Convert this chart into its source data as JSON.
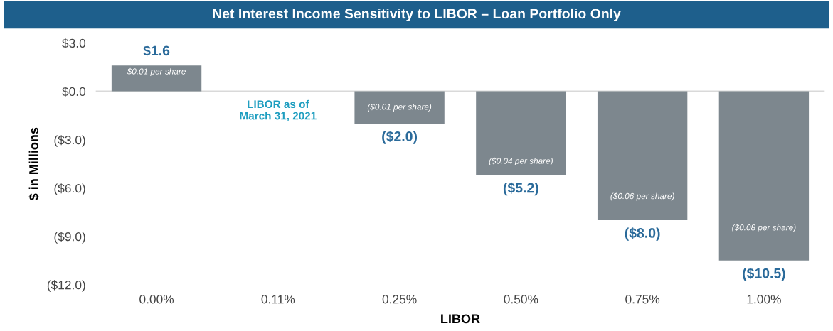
{
  "chart_data": {
    "type": "bar",
    "title": "Net Interest Income Sensitivity to LIBOR – Loan Portfolio Only",
    "xlabel": "LIBOR",
    "ylabel": "$ in Millions",
    "categories": [
      "0.00%",
      "0.11%",
      "0.25%",
      "0.50%",
      "0.75%",
      "1.00%"
    ],
    "values": [
      1.6,
      null,
      -2.0,
      -5.2,
      -8.0,
      -10.5
    ],
    "value_labels": [
      "$1.6",
      null,
      "($2.0)",
      "($5.2)",
      "($8.0)",
      "($10.5)"
    ],
    "color": "#7d878e",
    "ylim": [
      -12,
      3
    ],
    "yticks": [
      {
        "value": 3,
        "label": "$3.0"
      },
      {
        "value": 0,
        "label": "$0.0"
      },
      {
        "value": -3,
        "label": "($3.0)"
      },
      {
        "value": -6,
        "label": "($6.0)"
      },
      {
        "value": -9,
        "label": "($9.0)"
      },
      {
        "value": -12,
        "label": "($12.0)"
      }
    ],
    "ref_lines": [
      {
        "axis": "y",
        "value": 0,
        "color": "#d9d9d9"
      }
    ],
    "annotations": [
      "$0.01 per share",
      "LIBOR as of\nMarch 31, 2021",
      "($0.01 per share)",
      "($0.04 per share)",
      "($0.06 per share)",
      "($0.08 per share)"
    ],
    "grid": false,
    "legend": false
  }
}
